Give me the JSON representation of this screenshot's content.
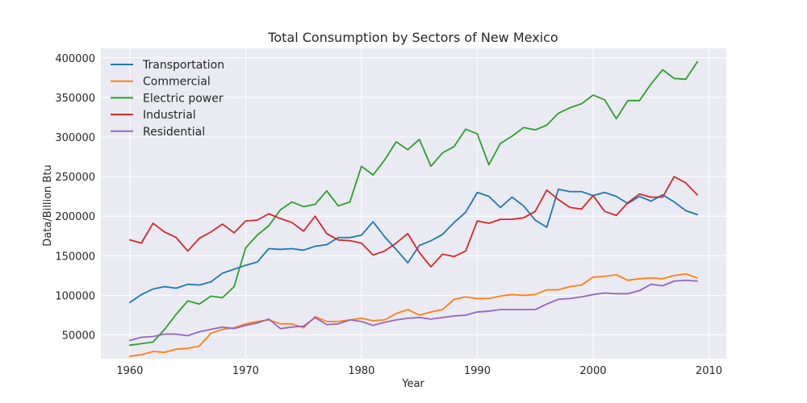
{
  "chart_data": {
    "type": "line",
    "title": "Total Consumption by Sectors of New Mexico",
    "xlabel": "Year",
    "ylabel": "Data/Billion Btu",
    "xlim": [
      1957.5,
      2011.5
    ],
    "ylim": [
      20000,
      412000
    ],
    "x_ticks": [
      1960,
      1970,
      1980,
      1990,
      2000,
      2010
    ],
    "y_ticks": [
      50000,
      100000,
      150000,
      200000,
      250000,
      300000,
      350000,
      400000
    ],
    "grid": true,
    "legend_position": "upper-left",
    "background": "#eaeaf2",
    "x": [
      1960,
      1961,
      1962,
      1963,
      1964,
      1965,
      1966,
      1967,
      1968,
      1969,
      1970,
      1971,
      1972,
      1973,
      1974,
      1975,
      1976,
      1977,
      1978,
      1979,
      1980,
      1981,
      1982,
      1983,
      1984,
      1985,
      1986,
      1987,
      1988,
      1989,
      1990,
      1991,
      1992,
      1993,
      1994,
      1995,
      1996,
      1997,
      1998,
      1999,
      2000,
      2001,
      2002,
      2003,
      2004,
      2005,
      2006,
      2007,
      2008,
      2009
    ],
    "series": [
      {
        "name": "Transportation",
        "color": "#1f77b4",
        "values": [
          91000,
          101000,
          108000,
          111000,
          109000,
          114000,
          113000,
          117000,
          128000,
          133000,
          138000,
          142000,
          159000,
          158000,
          159000,
          157000,
          162000,
          164000,
          173000,
          173000,
          176000,
          193000,
          174000,
          158000,
          141000,
          163000,
          169000,
          177000,
          192000,
          205000,
          230000,
          225000,
          211000,
          224000,
          213000,
          195000,
          186000,
          234000,
          231000,
          231000,
          226000,
          230000,
          225000,
          216000,
          225000,
          219000,
          227000,
          218000,
          207000,
          202000
        ]
      },
      {
        "name": "Commercial",
        "color": "#ff7f0e",
        "values": [
          23000,
          25000,
          29000,
          28000,
          32000,
          33000,
          36000,
          52000,
          57000,
          59000,
          64000,
          67000,
          69000,
          64000,
          64000,
          59000,
          73000,
          67000,
          67000,
          69000,
          71000,
          68000,
          69000,
          77000,
          82000,
          75000,
          79000,
          82000,
          95000,
          98000,
          96000,
          96000,
          99000,
          101000,
          100000,
          101000,
          107000,
          107000,
          111000,
          113000,
          123000,
          124000,
          126000,
          119000,
          121000,
          122000,
          121000,
          125000,
          127000,
          122000
        ]
      },
      {
        "name": "Electric power",
        "color": "#2ca02c",
        "values": [
          37000,
          39000,
          41000,
          57000,
          76000,
          93000,
          89000,
          99000,
          97000,
          111000,
          160000,
          176000,
          188000,
          208000,
          218000,
          212000,
          215000,
          232000,
          213000,
          218000,
          263000,
          252000,
          271000,
          294000,
          284000,
          297000,
          263000,
          280000,
          288000,
          310000,
          304000,
          265000,
          292000,
          301000,
          312000,
          309000,
          315000,
          330000,
          337000,
          342000,
          353000,
          347000,
          323000,
          346000,
          346000,
          367000,
          385000,
          374000,
          373000,
          395000
        ]
      },
      {
        "name": "Industrial",
        "color": "#d62728",
        "values": [
          170000,
          166000,
          191000,
          180000,
          173000,
          156000,
          172000,
          180000,
          190000,
          179000,
          194000,
          195000,
          203000,
          197000,
          192000,
          181000,
          200000,
          178000,
          170000,
          169000,
          166000,
          151000,
          156000,
          166000,
          178000,
          154000,
          136000,
          152000,
          149000,
          156000,
          194000,
          191000,
          196000,
          196000,
          198000,
          206000,
          233000,
          221000,
          211000,
          209000,
          226000,
          206000,
          201000,
          217000,
          228000,
          224000,
          224000,
          250000,
          242000,
          227000
        ]
      },
      {
        "name": "Residential",
        "color": "#9467bd",
        "values": [
          43000,
          47000,
          48000,
          51000,
          51000,
          49000,
          54000,
          57000,
          60000,
          58000,
          62000,
          65000,
          70000,
          58000,
          60000,
          61000,
          72000,
          63000,
          64000,
          69000,
          67000,
          62000,
          66000,
          69000,
          71000,
          72000,
          70000,
          72000,
          74000,
          75000,
          79000,
          80000,
          82000,
          82000,
          82000,
          82000,
          89000,
          95000,
          96000,
          98000,
          101000,
          103000,
          102000,
          102000,
          106000,
          114000,
          112000,
          118000,
          119000,
          118000
        ]
      }
    ]
  }
}
